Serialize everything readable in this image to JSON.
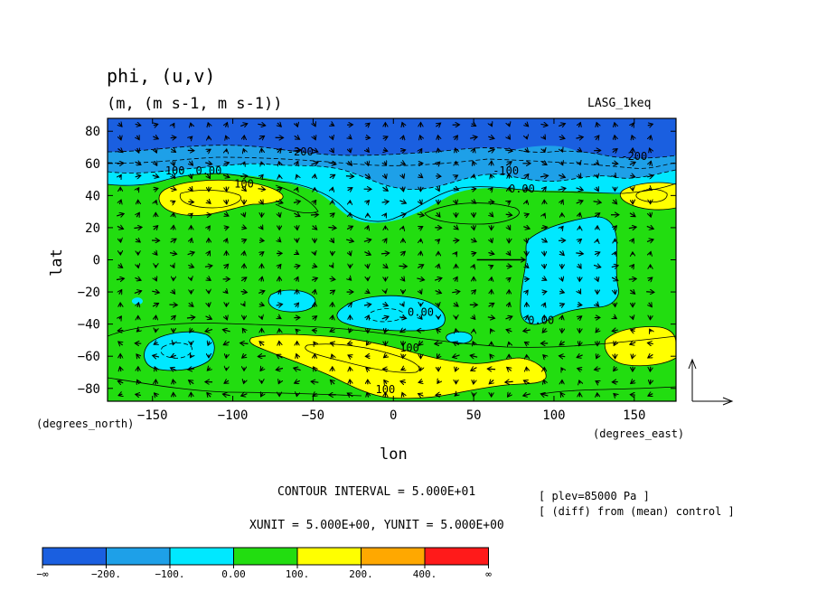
{
  "chart_data": {
    "type": "heatmap",
    "title": "phi, (u,v)",
    "subtitle": "(m, (m s-1, m s-1))",
    "run_label": "LASG_1keq",
    "xlabel": "lon",
    "ylabel": "lat",
    "x_unit_label": "(degrees_east)",
    "y_unit_label": "(degrees_north)",
    "xlim": [
      -178,
      176
    ],
    "ylim": [
      -88,
      88
    ],
    "x_ticks": [
      -150,
      -100,
      -50,
      0,
      50,
      100,
      150
    ],
    "x_tick_labels": [
      "−150",
      "−100",
      "−50",
      "0",
      "50",
      "100",
      "150"
    ],
    "y_ticks": [
      80,
      60,
      40,
      20,
      0,
      -20,
      -40,
      -60,
      -80
    ],
    "y_tick_labels": [
      "80",
      "60",
      "40",
      "20",
      "0",
      "−20",
      "−40",
      "−60",
      "−80"
    ],
    "contour_interval_text": "CONTOUR INTERVAL = 5.000E+01",
    "vector_unit_text": "XUNIT = 5.000E+00, YUNIT = 5.000E+00",
    "info_lines": [
      "[ plev=85000 Pa ]",
      "[ (diff) from (mean) control ]"
    ],
    "contour_labels": [
      {
        "text": "-200",
        "lon": -58,
        "lat": 65
      },
      {
        "text": "-100",
        "lon": -138,
        "lat": 53
      },
      {
        "text": "0.00",
        "lon": -115,
        "lat": 53
      },
      {
        "text": "100",
        "lon": -93,
        "lat": 45
      },
      {
        "text": "-200",
        "lon": 150,
        "lat": 62
      },
      {
        "text": "-100",
        "lon": 70,
        "lat": 53
      },
      {
        "text": "0.00",
        "lon": 80,
        "lat": 42
      },
      {
        "text": "0.00",
        "lon": 17,
        "lat": -35
      },
      {
        "text": "0.00",
        "lon": 92,
        "lat": -40
      },
      {
        "text": "100",
        "lon": 10,
        "lat": -57
      },
      {
        "text": "100",
        "lon": -5,
        "lat": -83
      }
    ],
    "colorbar": {
      "labels": [
        "−∞",
        "−200.",
        "−100.",
        "0.00",
        "100.",
        "200.",
        "400.",
        "∞"
      ],
      "colors": [
        "#1a5fe0",
        "#1ea0e8",
        "#00e8ff",
        "#22dd10",
        "#ffff00",
        "#ffa800",
        "#ff1a1a"
      ]
    }
  }
}
